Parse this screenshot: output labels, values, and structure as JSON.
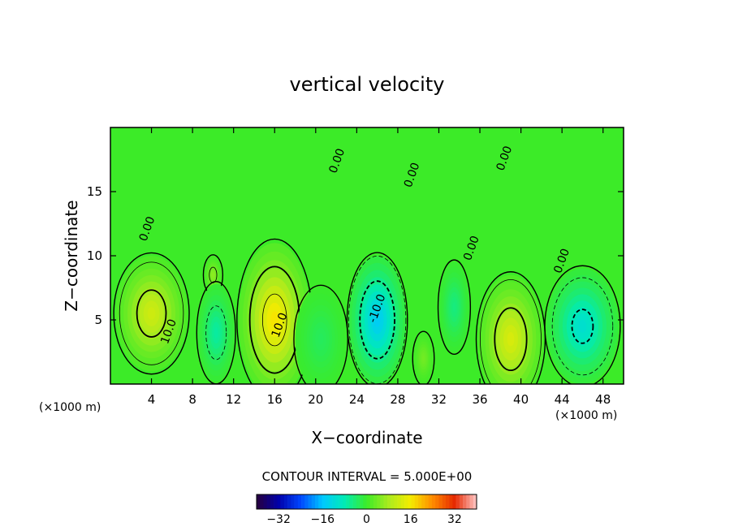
{
  "chart_data": {
    "type": "heatmap",
    "title": "vertical velocity",
    "xlabel": "X−coordinate",
    "ylabel": "Z−coordinate",
    "x_units": "(×1000 m)",
    "y_units": "(×1000 m)",
    "xlim": [
      0,
      50
    ],
    "ylim": [
      0,
      20
    ],
    "xticks": [
      4,
      8,
      12,
      16,
      20,
      24,
      28,
      32,
      36,
      40,
      44,
      48
    ],
    "yticks": [
      5,
      10,
      15
    ],
    "contour_interval_text": "CONTOUR INTERVAL = 5.000E+00",
    "contour_labels": [
      {
        "text": "10.0",
        "x": 6.0,
        "y": 4.0
      },
      {
        "text": "10.0",
        "x": 16.8,
        "y": 4.5
      },
      {
        "text": "-10.0",
        "x": 26.3,
        "y": 5.8
      },
      {
        "text": "0.00",
        "x": 3.9,
        "y": 12.0
      },
      {
        "text": "0.00",
        "x": 22.4,
        "y": 17.3
      },
      {
        "text": "0.00",
        "x": 29.7,
        "y": 16.2
      },
      {
        "text": "0.00",
        "x": 35.5,
        "y": 10.5
      },
      {
        "text": "0.00",
        "x": 38.7,
        "y": 17.5
      },
      {
        "text": "0.00",
        "x": 44.3,
        "y": 9.5
      }
    ],
    "cells": [
      {
        "xc": 4.0,
        "zc": 5.5,
        "rx": 3.5,
        "rz": 4.5,
        "amp": 12
      },
      {
        "xc": 10.0,
        "zc": 8.5,
        "rx": 0.9,
        "rz": 1.5,
        "amp": 6
      },
      {
        "xc": 10.3,
        "zc": 4.0,
        "rx": 1.8,
        "rz": 3.8,
        "amp": -7
      },
      {
        "xc": 16.0,
        "zc": 5.0,
        "rx": 3.5,
        "rz": 6.0,
        "amp": 17
      },
      {
        "xc": 20.5,
        "zc": 3.5,
        "rx": 2.5,
        "rz": 4.0,
        "amp": -3
      },
      {
        "xc": 26.0,
        "zc": 5.0,
        "rx": 2.8,
        "rz": 5.0,
        "amp": -15
      },
      {
        "xc": 30.5,
        "zc": 2.0,
        "rx": 1.0,
        "rz": 2.0,
        "amp": 4
      },
      {
        "xc": 33.5,
        "zc": 6.0,
        "rx": 1.5,
        "rz": 3.5,
        "amp": -5
      },
      {
        "xc": 39.0,
        "zc": 3.5,
        "rx": 3.2,
        "rz": 5.0,
        "amp": 13
      },
      {
        "xc": 46.0,
        "zc": 4.5,
        "rx": 3.5,
        "rz": 4.5,
        "amp": -11
      }
    ],
    "colorbar": {
      "range": [
        -40,
        40
      ],
      "tick_values": [
        -32,
        -16,
        0,
        16,
        32
      ],
      "tick_labels": [
        "−32",
        "−16",
        "0",
        "16",
        "32"
      ]
    },
    "grid": false
  }
}
